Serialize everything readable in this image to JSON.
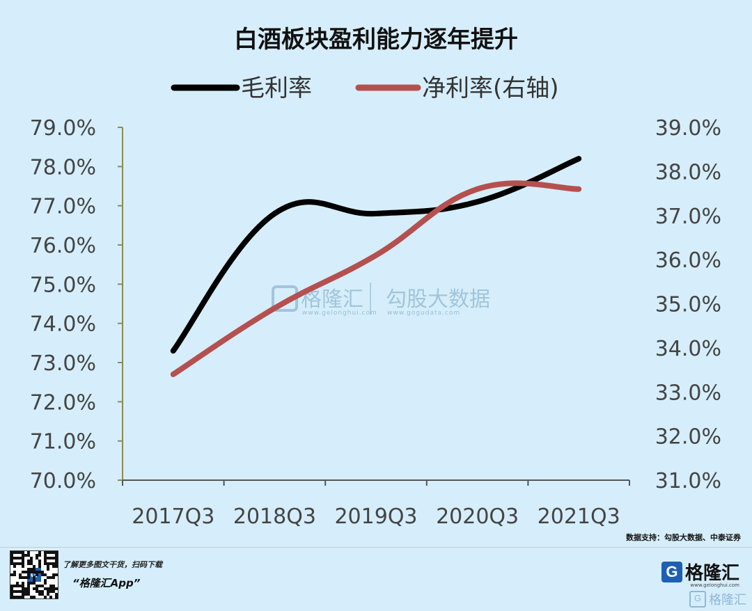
{
  "chart_data": {
    "type": "line",
    "title": "白酒板块盈利能力逐年提升",
    "categories": [
      "2017Q3",
      "2018Q3",
      "2019Q3",
      "2020Q3",
      "2021Q3"
    ],
    "series": [
      {
        "name": "毛利率",
        "axis": "left",
        "color": "#000000",
        "values": [
          73.3,
          76.8,
          76.8,
          77.1,
          78.2
        ]
      },
      {
        "name": "净利率(右轴)",
        "axis": "right",
        "color": "#b5504f",
        "values": [
          33.4,
          34.9,
          36.1,
          37.6,
          37.6
        ]
      }
    ],
    "left_axis": {
      "ylim": [
        70.0,
        79.0
      ],
      "ticks": [
        "79.0%",
        "78.0%",
        "77.0%",
        "76.0%",
        "75.0%",
        "74.0%",
        "73.0%",
        "72.0%",
        "71.0%",
        "70.0%"
      ]
    },
    "right_axis": {
      "ylim": [
        31.0,
        39.0
      ],
      "ticks": [
        "39.0%",
        "38.0%",
        "37.0%",
        "36.0%",
        "35.0%",
        "34.0%",
        "33.0%",
        "32.0%",
        "31.0%"
      ]
    },
    "legend_position": "top",
    "grid": false
  },
  "source": "数据支持：勾股大数据、中泰证券",
  "watermark": {
    "brand": "格隆汇",
    "brand_url": "www.gelonghui.com",
    "partner": "勾股大数据",
    "partner_url": "www.gogudata.com"
  },
  "footer": {
    "line1": "了解更多图文干货，扫码下载",
    "line2": "“格隆汇App”",
    "brand_letter": "G",
    "brand_name": "格隆汇",
    "brand_url": "www.gelonghui.com",
    "corner_brand": "格隆汇"
  },
  "colors": {
    "background": "#d6eefb",
    "gross_margin": "#000000",
    "net_margin": "#b5504f",
    "axis": "#8a8a5a"
  }
}
